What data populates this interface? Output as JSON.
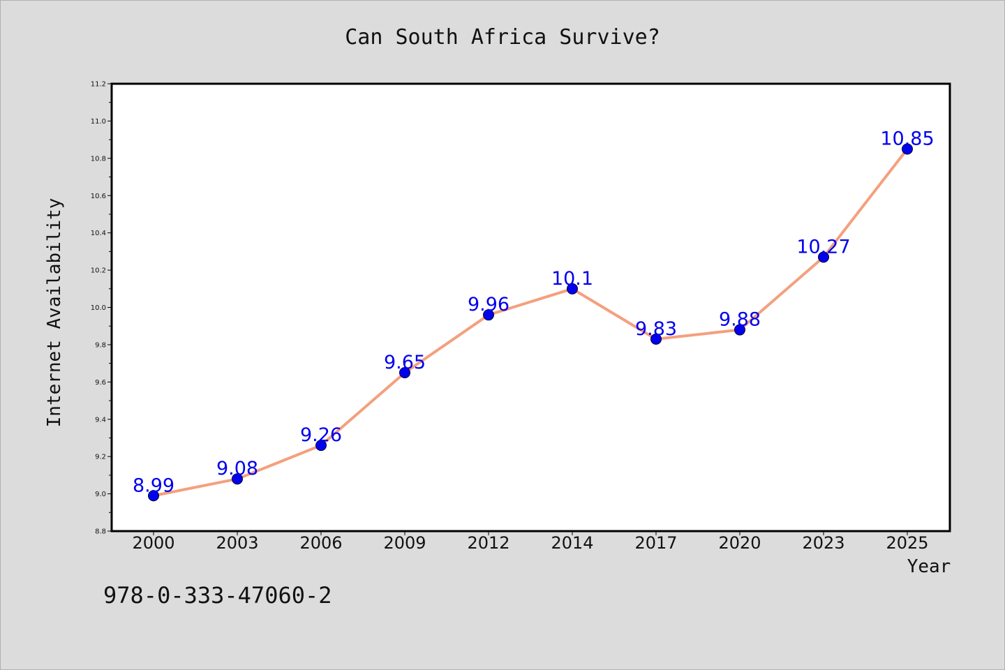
{
  "chart_data": {
    "type": "line",
    "title": "Can South Africa Survive?",
    "xlabel": "Year",
    "ylabel": "Internet Availability",
    "categories": [
      "2000",
      "2003",
      "2006",
      "2009",
      "2012",
      "2014",
      "2017",
      "2020",
      "2023",
      "2025"
    ],
    "series": [
      {
        "values": [
          8.99,
          9.08,
          9.26,
          9.65,
          9.96,
          10.1,
          9.83,
          9.88,
          10.27,
          10.85
        ],
        "labels": [
          "8.99",
          "9.08",
          "9.26",
          "9.65",
          "9.96",
          "10.1",
          "9.83",
          "9.88",
          "10.27",
          "10.85"
        ],
        "line_color": "#f4a07e",
        "marker_color": "#0000ee",
        "label_color": "#0000ee"
      }
    ],
    "ylim": [
      8.8,
      11.2
    ],
    "yticks": [
      "8.8",
      "9.0",
      "9.2",
      "9.4",
      "9.6",
      "9.8",
      "10.0",
      "10.2",
      "10.4",
      "10.6",
      "10.8",
      "11.0",
      "11.2"
    ],
    "grid": false,
    "legend": "none"
  },
  "annotation": "978-0-333-47060-2",
  "colors": {
    "background": "#dcdcdc",
    "plot_background": "#ffffff",
    "axes": "#000000"
  }
}
